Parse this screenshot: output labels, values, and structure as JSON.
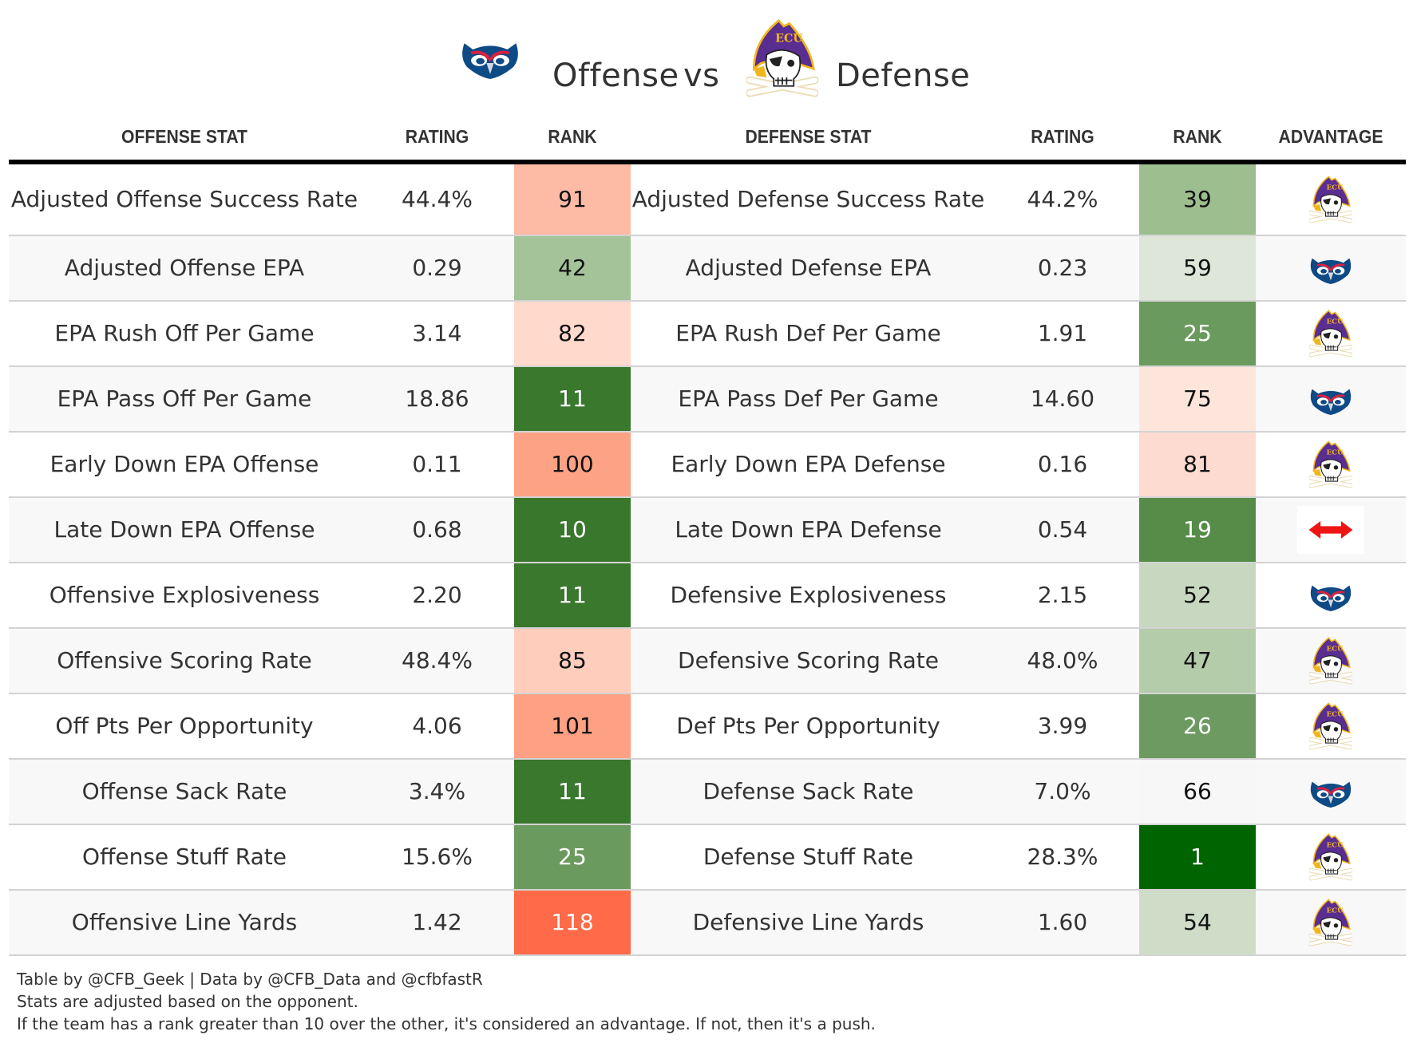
{
  "header": {
    "offense_label": "Offense",
    "vs_label": "vs",
    "defense_label": "Defense",
    "offense_team_icon": "owl-logo-icon",
    "defense_team_icon": "pirate-logo-icon"
  },
  "columns": {
    "offense_stat": "OFFENSE STAT",
    "offense_rating": "RATING",
    "offense_rank": "RANK",
    "defense_stat": "DEFENSE STAT",
    "defense_rating": "RATING",
    "defense_rank": "RANK",
    "advantage": "ADVANTAGE"
  },
  "rows": [
    {
      "off_stat": "Adjusted Offense Success Rate",
      "off_rating": "44.4%",
      "off_rank": "91",
      "off_color": "#fdbba5",
      "off_light": false,
      "def_stat": "Adjusted Defense Success Rate",
      "def_rating": "44.2%",
      "def_rank": "39",
      "def_color": "#9dbe8f",
      "def_light": false,
      "advantage": "defense"
    },
    {
      "off_stat": "Adjusted Offense EPA",
      "off_rating": "0.29",
      "off_rank": "42",
      "off_color": "#a4c398",
      "off_light": false,
      "def_stat": "Adjusted Defense EPA",
      "def_rating": "0.23",
      "def_rank": "59",
      "def_color": "#dde6d9",
      "def_light": false,
      "advantage": "offense"
    },
    {
      "off_stat": "EPA Rush Off Per Game",
      "off_rating": "3.14",
      "off_rank": "82",
      "off_color": "#fed9cc",
      "off_light": false,
      "def_stat": "EPA Rush Def Per Game",
      "def_rating": "1.91",
      "def_rank": "25",
      "def_color": "#6a9a5d",
      "def_light": true,
      "advantage": "defense"
    },
    {
      "off_stat": "EPA Pass Off Per Game",
      "off_rating": "18.86",
      "off_rank": "11",
      "off_color": "#3a782e",
      "off_light": true,
      "def_stat": "EPA Pass Def Per Game",
      "def_rating": "14.60",
      "def_rank": "75",
      "def_color": "#fde5dc",
      "def_light": false,
      "advantage": "offense"
    },
    {
      "off_stat": "Early Down EPA Offense",
      "off_rating": "0.11",
      "off_rank": "100",
      "off_color": "#fea285",
      "off_light": false,
      "def_stat": "Early Down EPA Defense",
      "def_rating": "0.16",
      "def_rank": "81",
      "def_color": "#fedbd0",
      "def_light": false,
      "advantage": "defense"
    },
    {
      "off_stat": "Late Down EPA Offense",
      "off_rating": "0.68",
      "off_rank": "10",
      "off_color": "#38772c",
      "off_light": true,
      "def_stat": "Late Down EPA Defense",
      "def_rating": "0.54",
      "def_rank": "19",
      "def_color": "#568c48",
      "def_light": true,
      "advantage": "push"
    },
    {
      "off_stat": "Offensive Explosiveness",
      "off_rating": "2.20",
      "off_rank": "11",
      "off_color": "#3a782e",
      "off_light": true,
      "def_stat": "Defensive Explosiveness",
      "def_rating": "2.15",
      "def_rank": "52",
      "def_color": "#c8d8c0",
      "def_light": false,
      "advantage": "offense"
    },
    {
      "off_stat": "Offensive Scoring Rate",
      "off_rating": "48.4%",
      "off_rank": "85",
      "off_color": "#fecdbc",
      "off_light": false,
      "def_stat": "Defensive Scoring Rate",
      "def_rating": "48.0%",
      "def_rank": "47",
      "def_color": "#b5ccaa",
      "def_light": false,
      "advantage": "defense"
    },
    {
      "off_stat": "Off Pts Per Opportunity",
      "off_rating": "4.06",
      "off_rank": "101",
      "off_color": "#fea083",
      "off_light": false,
      "def_stat": "Def Pts Per Opportunity",
      "def_rating": "3.99",
      "def_rank": "26",
      "def_color": "#6c9a60",
      "def_light": true,
      "advantage": "defense"
    },
    {
      "off_stat": "Offense Sack Rate",
      "off_rating": "3.4%",
      "off_rank": "11",
      "off_color": "#3a782e",
      "off_light": true,
      "def_stat": "Defense Sack Rate",
      "def_rating": "7.0%",
      "def_rank": "66",
      "def_color": "#f7f7f7",
      "def_light": false,
      "advantage": "offense"
    },
    {
      "off_stat": "Offense Stuff Rate",
      "off_rating": "15.6%",
      "off_rank": "25",
      "off_color": "#6a9a5d",
      "off_light": true,
      "def_stat": "Defense Stuff Rate",
      "def_rating": "28.3%",
      "def_rank": "1",
      "def_color": "#006400",
      "def_light": true,
      "advantage": "defense"
    },
    {
      "off_stat": "Offensive Line Yards",
      "off_rating": "1.42",
      "off_rank": "118",
      "off_color": "#ff6a48",
      "off_light": true,
      "def_stat": "Defensive Line Yards",
      "def_rating": "1.60",
      "def_rank": "54",
      "def_color": "#cfddc8",
      "def_light": false,
      "advantage": "defense"
    }
  ],
  "footer": {
    "credits": "Table by @CFB_Geek | Data by @CFB_Data and @cfbfastR",
    "note1": "Stats are adjusted based on the opponent.",
    "note2": "If the team has a rank greater than 10 over the other, it's considered an advantage. If not, then it's a push."
  }
}
